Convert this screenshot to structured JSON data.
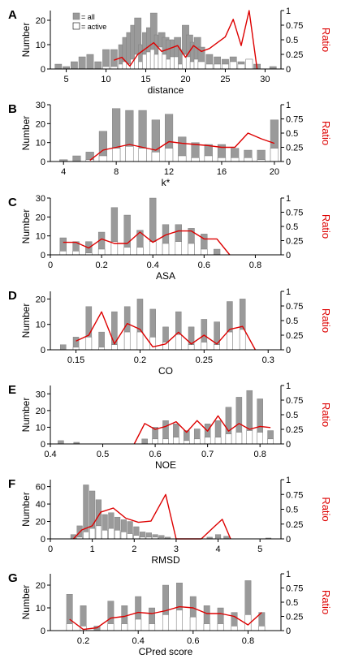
{
  "legend": {
    "all_label": "= all",
    "active_label": "= active"
  },
  "colors": {
    "all_fill": "#9a9a9a",
    "active_fill": "#ffffff",
    "bar_stroke": "#777777",
    "ratio_line": "#dd0000",
    "ratio_label": "#dd0000",
    "axis": "#000000"
  },
  "chart_data": [
    {
      "panel": "A",
      "type": "bar",
      "xlabel": "distance",
      "ylabel": "Number",
      "y2label": "Ratio",
      "xlim": [
        3,
        32
      ],
      "xticks": [
        5,
        10,
        15,
        20,
        25,
        30
      ],
      "ylim": [
        0,
        24
      ],
      "yticks": [
        0,
        10,
        20
      ],
      "y2lim": [
        0,
        1
      ],
      "y2ticks": [
        0,
        0.25,
        0.5,
        0.75,
        1
      ],
      "y2ticklabels": [
        "0",
        "0.25",
        "0.5",
        "0.75",
        "1"
      ],
      "bar_width": 0.85,
      "x": [
        4,
        5,
        6,
        7,
        8,
        9,
        10,
        11,
        12,
        12.5,
        13,
        13.5,
        14,
        14.5,
        15,
        15.5,
        16,
        16.5,
        17,
        17.5,
        18,
        18.5,
        19,
        19.5,
        20,
        20.5,
        21,
        21.5,
        22,
        23,
        24,
        25,
        26,
        27,
        28,
        29,
        31
      ],
      "series": [
        {
          "name": "all",
          "values": [
            2,
            1,
            3,
            5,
            6,
            3,
            8,
            8,
            10,
            13,
            15,
            18,
            21,
            10,
            15,
            17,
            23,
            14,
            15,
            13,
            12,
            12,
            13,
            8,
            18,
            14,
            11,
            13,
            9,
            6,
            5,
            4,
            5,
            3,
            4,
            2,
            1
          ]
        },
        {
          "name": "active",
          "values": [
            0,
            0,
            0,
            0,
            0,
            0,
            1,
            1,
            2,
            3,
            2,
            4,
            6,
            3,
            6,
            7,
            8,
            6,
            9,
            6,
            4,
            5,
            5,
            2,
            6,
            5,
            3,
            4,
            3,
            2,
            2,
            2,
            3,
            2,
            4,
            0,
            0
          ]
        }
      ],
      "ratio": {
        "x": [
          11,
          12,
          13,
          14,
          15,
          16,
          17,
          18,
          19,
          20,
          21,
          22,
          23,
          24,
          25,
          26,
          27,
          28,
          29
        ],
        "values": [
          0.15,
          0.2,
          0.05,
          0.25,
          0.35,
          0.45,
          0.3,
          0.35,
          0.4,
          0.2,
          0.4,
          0.3,
          0.35,
          0.45,
          0.55,
          0.85,
          0.4,
          1.0,
          0.0
        ]
      }
    },
    {
      "panel": "B",
      "type": "bar",
      "xlabel": "k*",
      "ylabel": "Number",
      "y2label": "Ratio",
      "xlim": [
        3,
        20.5
      ],
      "xticks": [
        4,
        8,
        12,
        16,
        20
      ],
      "ylim": [
        0,
        30
      ],
      "yticks": [
        0,
        10,
        20,
        30
      ],
      "y2lim": [
        0,
        1
      ],
      "y2ticks": [
        0,
        0.25,
        0.5,
        0.75,
        1
      ],
      "y2ticklabels": [
        "0",
        "0.25",
        "0.5",
        "0.75",
        "1"
      ],
      "bar_width": 0.6,
      "x": [
        4,
        5,
        6,
        7,
        8,
        9,
        10,
        11,
        12,
        13,
        14,
        15,
        16,
        17,
        18,
        19,
        20
      ],
      "series": [
        {
          "name": "all",
          "values": [
            1,
            3,
            5,
            16,
            28,
            27,
            27,
            22,
            25,
            13,
            10,
            9,
            9,
            7,
            6,
            6,
            22
          ]
        },
        {
          "name": "active",
          "values": [
            0,
            0,
            1,
            3,
            7,
            8,
            7,
            5,
            7,
            3,
            2,
            3,
            2,
            2,
            2,
            1,
            7
          ]
        }
      ],
      "ratio": {
        "x": [
          6,
          7,
          8,
          9,
          10,
          11,
          12,
          13,
          14,
          15,
          16,
          17,
          18,
          19,
          20
        ],
        "values": [
          0.02,
          0.2,
          0.25,
          0.3,
          0.25,
          0.2,
          0.35,
          0.32,
          0.3,
          0.28,
          0.25,
          0.25,
          0.5,
          0.4,
          0.32
        ]
      }
    },
    {
      "panel": "C",
      "type": "bar",
      "xlabel": "ASA",
      "ylabel": "Number",
      "y2label": "Ratio",
      "xlim": [
        0,
        0.9
      ],
      "xticks": [
        0,
        0.2,
        0.4,
        0.6,
        0.8
      ],
      "ylim": [
        0,
        30
      ],
      "yticks": [
        0,
        10,
        20,
        30
      ],
      "y2lim": [
        0,
        1
      ],
      "y2ticks": [
        0,
        0.25,
        0.5,
        0.75,
        1
      ],
      "y2ticklabels": [
        "0",
        "0.25",
        "0.5",
        "0.75",
        "1"
      ],
      "bar_width": 0.025,
      "x": [
        0.05,
        0.1,
        0.15,
        0.2,
        0.25,
        0.3,
        0.35,
        0.4,
        0.45,
        0.5,
        0.55,
        0.6,
        0.65
      ],
      "series": [
        {
          "name": "all",
          "values": [
            9,
            7,
            7,
            12,
            25,
            21,
            13,
            30,
            16,
            16,
            14,
            11,
            3
          ]
        },
        {
          "name": "active",
          "values": [
            2,
            2,
            1,
            3,
            7,
            4,
            4,
            7,
            6,
            7,
            6,
            3,
            0
          ]
        }
      ],
      "ratio": {
        "x": [
          0.05,
          0.1,
          0.15,
          0.2,
          0.25,
          0.3,
          0.35,
          0.4,
          0.45,
          0.5,
          0.55,
          0.6,
          0.65,
          0.7
        ],
        "values": [
          0.22,
          0.22,
          0.12,
          0.28,
          0.2,
          0.2,
          0.4,
          0.22,
          0.35,
          0.42,
          0.42,
          0.28,
          0.28,
          0.0
        ]
      }
    },
    {
      "panel": "D",
      "type": "bar",
      "xlabel": "CO",
      "ylabel": "Number",
      "y2label": "Ratio",
      "xlim": [
        0.13,
        0.31
      ],
      "xticks": [
        0.15,
        0.2,
        0.25,
        0.3
      ],
      "ylim": [
        0,
        23
      ],
      "yticks": [
        0,
        10,
        20
      ],
      "y2lim": [
        0,
        1
      ],
      "y2ticks": [
        0,
        0.25,
        0.5,
        0.75,
        1
      ],
      "y2ticklabels": [
        "0",
        "0.25",
        "0.5",
        "0.75",
        "1"
      ],
      "bar_width": 0.0045,
      "x": [
        0.14,
        0.15,
        0.16,
        0.17,
        0.18,
        0.19,
        0.2,
        0.21,
        0.22,
        0.23,
        0.24,
        0.25,
        0.26,
        0.27,
        0.28
      ],
      "series": [
        {
          "name": "all",
          "values": [
            2,
            5,
            17,
            7,
            15,
            17,
            20,
            16,
            9,
            15,
            9,
            12,
            11,
            19,
            20
          ]
        },
        {
          "name": "active",
          "values": [
            0,
            1,
            5,
            1,
            2,
            7,
            7,
            5,
            3,
            6,
            2,
            3,
            2,
            7,
            8
          ]
        }
      ],
      "ratio": {
        "x": [
          0.15,
          0.16,
          0.17,
          0.18,
          0.19,
          0.2,
          0.21,
          0.22,
          0.23,
          0.24,
          0.25,
          0.26,
          0.27,
          0.28,
          0.29
        ],
        "values": [
          0.15,
          0.25,
          0.65,
          0.1,
          0.45,
          0.35,
          0.05,
          0.1,
          0.3,
          0.1,
          0.25,
          0.1,
          0.35,
          0.4,
          0.0
        ]
      }
    },
    {
      "panel": "E",
      "type": "bar",
      "xlabel": "NOE",
      "ylabel": "Number",
      "y2label": "Ratio",
      "xlim": [
        0.4,
        0.84
      ],
      "xticks": [
        0.4,
        0.5,
        0.6,
        0.7,
        0.8
      ],
      "ylim": [
        0,
        35
      ],
      "yticks": [
        0,
        10,
        20,
        30
      ],
      "y2lim": [
        0,
        1
      ],
      "y2ticks": [
        0,
        0.25,
        0.5,
        0.75,
        1
      ],
      "y2ticklabels": [
        "0",
        "0.25",
        "0.5",
        "0.75",
        "1"
      ],
      "bar_width": 0.011,
      "x": [
        0.42,
        0.45,
        0.58,
        0.6,
        0.62,
        0.64,
        0.66,
        0.68,
        0.7,
        0.72,
        0.74,
        0.76,
        0.78,
        0.8,
        0.82
      ],
      "series": [
        {
          "name": "all",
          "values": [
            2,
            1,
            3,
            10,
            14,
            12,
            8,
            9,
            12,
            14,
            22,
            28,
            32,
            27,
            8
          ]
        },
        {
          "name": "active",
          "values": [
            0,
            0,
            0,
            3,
            3,
            4,
            2,
            3,
            4,
            4,
            6,
            7,
            8,
            7,
            3
          ]
        }
      ],
      "ratio": {
        "x": [
          0.56,
          0.58,
          0.6,
          0.62,
          0.64,
          0.66,
          0.68,
          0.7,
          0.72,
          0.74,
          0.76,
          0.78,
          0.8,
          0.82
        ],
        "values": [
          0.0,
          0.35,
          0.25,
          0.3,
          0.38,
          0.2,
          0.4,
          0.22,
          0.48,
          0.22,
          0.35,
          0.25,
          0.3,
          0.28
        ]
      }
    },
    {
      "panel": "F",
      "type": "bar",
      "xlabel": "RMSD",
      "ylabel": "Number",
      "y2label": "Ratio",
      "xlim": [
        0,
        5.5
      ],
      "xticks": [
        0,
        1,
        2,
        3,
        4,
        5
      ],
      "ylim": [
        0,
        68
      ],
      "yticks": [
        0,
        20,
        40,
        60
      ],
      "y2lim": [
        0,
        1
      ],
      "y2ticks": [
        0,
        0.25,
        0.5,
        0.75,
        1
      ],
      "y2ticklabels": [
        "0",
        "0.25",
        "0.5",
        "0.75",
        "1"
      ],
      "bar_width": 0.13,
      "x": [
        0.55,
        0.7,
        0.85,
        1.0,
        1.15,
        1.3,
        1.45,
        1.6,
        1.75,
        1.9,
        2.05,
        2.2,
        2.35,
        2.5,
        2.65,
        2.8,
        3.8,
        4.0,
        4.2,
        5.2
      ],
      "series": [
        {
          "name": "all",
          "values": [
            5,
            15,
            62,
            55,
            45,
            28,
            30,
            25,
            22,
            20,
            14,
            8,
            7,
            5,
            4,
            2,
            2,
            5,
            3,
            1
          ]
        },
        {
          "name": "active",
          "values": [
            0,
            2,
            8,
            12,
            15,
            10,
            12,
            10,
            8,
            6,
            4,
            2,
            2,
            2,
            1,
            0,
            0,
            1,
            0,
            0
          ]
        }
      ],
      "ratio": {
        "x": [
          0.55,
          0.75,
          1.0,
          1.2,
          1.5,
          1.8,
          2.1,
          2.4,
          2.75,
          3.0,
          3.6,
          3.9,
          4.1,
          4.3
        ],
        "values": [
          0.0,
          0.15,
          0.22,
          0.45,
          0.52,
          0.35,
          0.28,
          0.3,
          0.75,
          0.0,
          0.0,
          0.2,
          0.33,
          0.0
        ]
      }
    },
    {
      "panel": "G",
      "type": "bar",
      "xlabel": "CPred score",
      "ylabel": "Number",
      "y2label": "Ratio",
      "xlim": [
        0.08,
        0.92
      ],
      "xticks": [
        0.2,
        0.4,
        0.6,
        0.8
      ],
      "ylim": [
        0,
        25
      ],
      "yticks": [
        0,
        10,
        20
      ],
      "y2lim": [
        0,
        1
      ],
      "y2ticks": [
        0,
        0.25,
        0.5,
        0.75,
        1
      ],
      "y2ticklabels": [
        "0",
        "0.25",
        "0.5",
        "0.75",
        "1"
      ],
      "bar_width": 0.022,
      "x": [
        0.15,
        0.2,
        0.25,
        0.3,
        0.35,
        0.4,
        0.45,
        0.5,
        0.55,
        0.6,
        0.65,
        0.7,
        0.75,
        0.8,
        0.85
      ],
      "series": [
        {
          "name": "all",
          "values": [
            16,
            11,
            2,
            13,
            11,
            15,
            10,
            20,
            21,
            15,
            11,
            10,
            8,
            22,
            8
          ]
        },
        {
          "name": "active",
          "values": [
            3,
            2,
            0,
            3,
            3,
            5,
            3,
            7,
            9,
            6,
            3,
            3,
            2,
            7,
            2
          ]
        }
      ],
      "ratio": {
        "x": [
          0.15,
          0.2,
          0.25,
          0.3,
          0.35,
          0.4,
          0.45,
          0.5,
          0.55,
          0.6,
          0.65,
          0.7,
          0.75,
          0.8,
          0.85
        ],
        "values": [
          0.2,
          0.02,
          0.05,
          0.22,
          0.25,
          0.32,
          0.3,
          0.35,
          0.42,
          0.4,
          0.3,
          0.3,
          0.25,
          0.1,
          0.32
        ]
      }
    }
  ]
}
